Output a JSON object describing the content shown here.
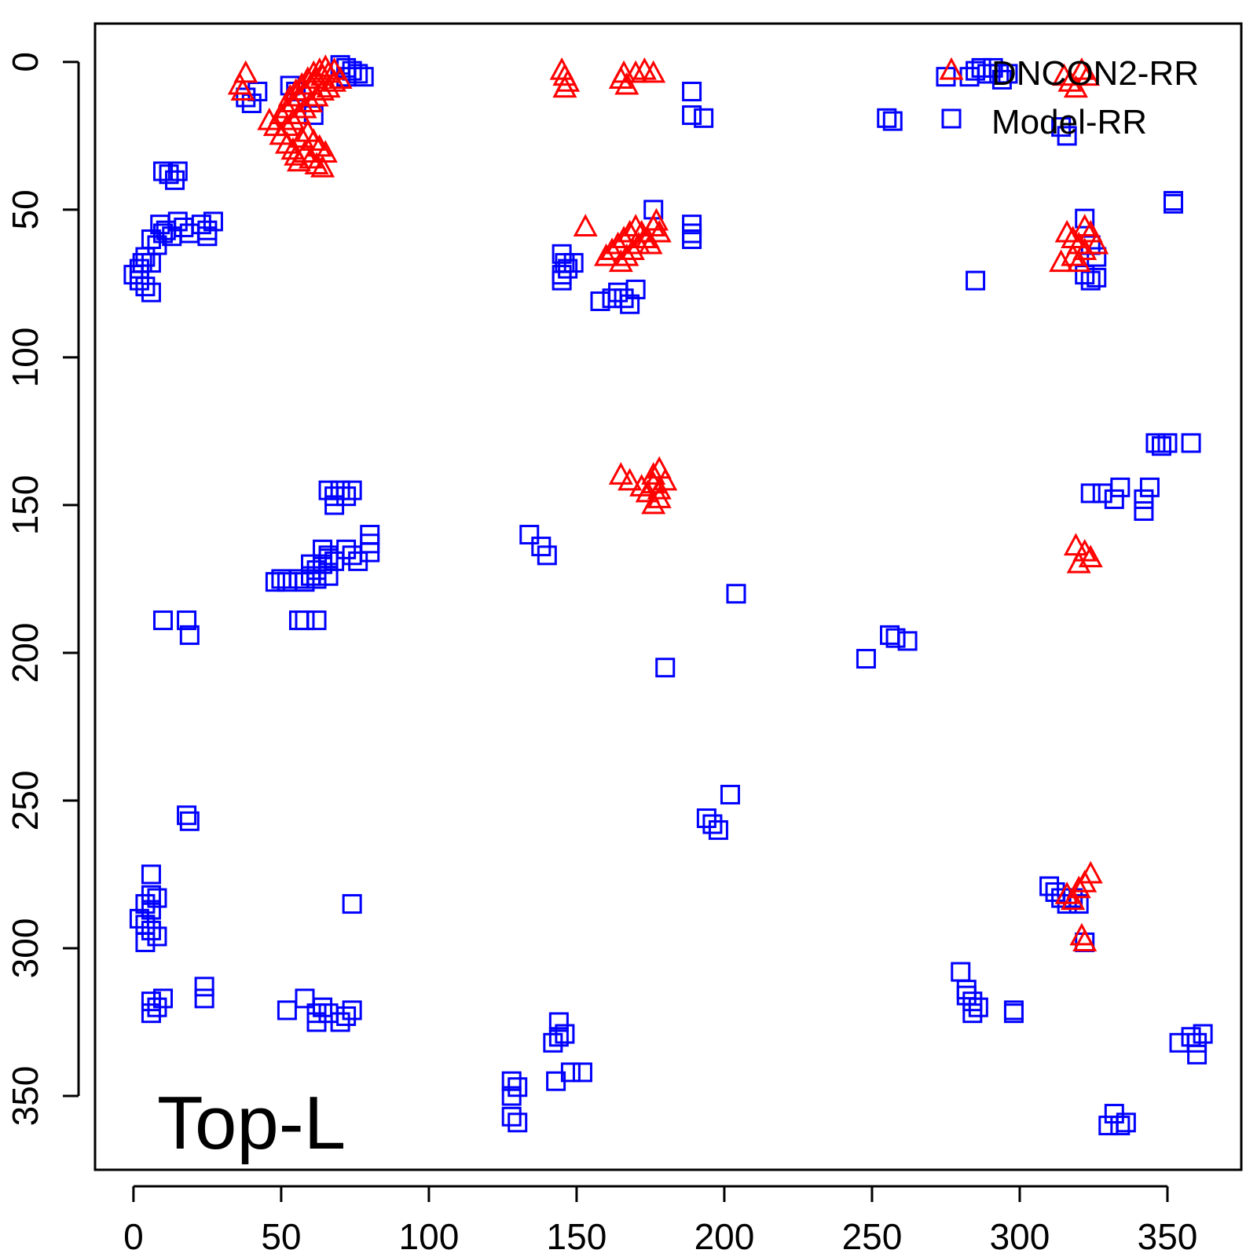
{
  "chart_data": {
    "type": "scatter",
    "title": "",
    "xlabel": "",
    "ylabel": "",
    "xlim": [
      -13,
      375
    ],
    "ylim": [
      -13,
      375
    ],
    "y_reversed": true,
    "x_ticks": [
      "0",
      "50",
      "100",
      "150",
      "200",
      "250",
      "300",
      "350"
    ],
    "y_ticks": [
      "0",
      "50",
      "100",
      "150",
      "200",
      "250",
      "300",
      "350"
    ],
    "grid": false,
    "legend_position": "top-right",
    "annotation": "Top-L",
    "series": [
      {
        "name": "DNCON2-RR",
        "color": "#ff0000",
        "marker": "triangle",
        "points": [
          [
            36,
            8
          ],
          [
            38,
            4
          ],
          [
            37,
            10
          ],
          [
            46,
            20
          ],
          [
            48,
            22
          ],
          [
            50,
            25
          ],
          [
            52,
            28
          ],
          [
            54,
            30
          ],
          [
            55,
            32
          ],
          [
            56,
            34
          ],
          [
            58,
            31
          ],
          [
            60,
            33
          ],
          [
            62,
            35
          ],
          [
            64,
            36
          ],
          [
            50,
            18
          ],
          [
            52,
            16
          ],
          [
            54,
            14
          ],
          [
            56,
            12
          ],
          [
            58,
            10
          ],
          [
            60,
            8
          ],
          [
            62,
            6
          ],
          [
            64,
            5
          ],
          [
            66,
            4
          ],
          [
            68,
            3
          ],
          [
            70,
            6
          ],
          [
            52,
            22
          ],
          [
            54,
            20
          ],
          [
            56,
            18
          ],
          [
            58,
            16
          ],
          [
            60,
            14
          ],
          [
            62,
            12
          ],
          [
            64,
            10
          ],
          [
            66,
            9
          ],
          [
            68,
            7
          ],
          [
            57,
            26
          ],
          [
            59,
            24
          ],
          [
            61,
            27
          ],
          [
            63,
            29
          ],
          [
            65,
            31
          ],
          [
            53,
            12
          ],
          [
            55,
            10
          ],
          [
            57,
            8
          ],
          [
            59,
            6
          ],
          [
            61,
            4
          ],
          [
            63,
            3
          ],
          [
            65,
            2
          ],
          [
            145,
            3
          ],
          [
            146,
            5
          ],
          [
            147,
            7
          ],
          [
            146,
            9
          ],
          [
            165,
            6
          ],
          [
            166,
            4
          ],
          [
            167,
            8
          ],
          [
            170,
            4
          ],
          [
            173,
            3
          ],
          [
            176,
            4
          ],
          [
            153,
            56
          ],
          [
            160,
            66
          ],
          [
            162,
            64
          ],
          [
            164,
            62
          ],
          [
            166,
            60
          ],
          [
            168,
            58
          ],
          [
            170,
            56
          ],
          [
            172,
            58
          ],
          [
            174,
            60
          ],
          [
            176,
            56
          ],
          [
            178,
            58
          ],
          [
            165,
            68
          ],
          [
            167,
            66
          ],
          [
            169,
            64
          ],
          [
            171,
            62
          ],
          [
            173,
            60
          ],
          [
            175,
            62
          ],
          [
            177,
            54
          ],
          [
            165,
            140
          ],
          [
            168,
            142
          ],
          [
            172,
            144
          ],
          [
            174,
            146
          ],
          [
            176,
            143
          ],
          [
            178,
            145
          ],
          [
            176,
            150
          ],
          [
            178,
            148
          ],
          [
            176,
            140
          ],
          [
            178,
            138
          ],
          [
            180,
            142
          ],
          [
            315,
            5
          ],
          [
            317,
            7
          ],
          [
            319,
            9
          ],
          [
            321,
            3
          ],
          [
            323,
            5
          ],
          [
            316,
            58
          ],
          [
            318,
            60
          ],
          [
            320,
            62
          ],
          [
            322,
            64
          ],
          [
            324,
            58
          ],
          [
            326,
            62
          ],
          [
            318,
            66
          ],
          [
            320,
            68
          ],
          [
            322,
            56
          ],
          [
            314,
            68
          ],
          [
            319,
            164
          ],
          [
            322,
            166
          ],
          [
            324,
            168
          ],
          [
            320,
            170
          ],
          [
            316,
            282
          ],
          [
            318,
            284
          ],
          [
            320,
            280
          ],
          [
            322,
            278
          ],
          [
            324,
            275
          ],
          [
            321,
            296
          ],
          [
            322,
            298
          ]
        ]
      },
      {
        "name": "Model-RR",
        "color": "#0000ff",
        "marker": "square",
        "points": [
          [
            38,
            12
          ],
          [
            40,
            14
          ],
          [
            42,
            10
          ],
          [
            53,
            8
          ],
          [
            55,
            10
          ],
          [
            61,
            18
          ],
          [
            70,
            1
          ],
          [
            72,
            2
          ],
          [
            74,
            3
          ],
          [
            76,
            4
          ],
          [
            78,
            5
          ],
          [
            72,
            5
          ],
          [
            10,
            37
          ],
          [
            12,
            38
          ],
          [
            14,
            40
          ],
          [
            15,
            37
          ],
          [
            9,
            55
          ],
          [
            11,
            57
          ],
          [
            13,
            59
          ],
          [
            15,
            54
          ],
          [
            17,
            56
          ],
          [
            19,
            58
          ],
          [
            23,
            55
          ],
          [
            25,
            57
          ],
          [
            27,
            54
          ],
          [
            25,
            59
          ],
          [
            6,
            60
          ],
          [
            8,
            62
          ],
          [
            10,
            58
          ],
          [
            4,
            66
          ],
          [
            6,
            68
          ],
          [
            2,
            70
          ],
          [
            0,
            72
          ],
          [
            2,
            74
          ],
          [
            4,
            76
          ],
          [
            6,
            78
          ],
          [
            3,
            68
          ],
          [
            145,
            65
          ],
          [
            146,
            68
          ],
          [
            147,
            70
          ],
          [
            149,
            68
          ],
          [
            145,
            72
          ],
          [
            145,
            74
          ],
          [
            158,
            81
          ],
          [
            162,
            80
          ],
          [
            164,
            78
          ],
          [
            166,
            80
          ],
          [
            170,
            77
          ],
          [
            168,
            82
          ],
          [
            176,
            50
          ],
          [
            189,
            10
          ],
          [
            189,
            18
          ],
          [
            193,
            19
          ],
          [
            189,
            55
          ],
          [
            189,
            58
          ],
          [
            189,
            60
          ],
          [
            283,
            5
          ],
          [
            285,
            3
          ],
          [
            287,
            2
          ],
          [
            289,
            4
          ],
          [
            291,
            2
          ],
          [
            293,
            4
          ],
          [
            294,
            6
          ],
          [
            296,
            4
          ],
          [
            275,
            5
          ],
          [
            255,
            19
          ],
          [
            257,
            20
          ],
          [
            314,
            22
          ],
          [
            316,
            25
          ],
          [
            285,
            74
          ],
          [
            322,
            53
          ],
          [
            324,
            62
          ],
          [
            326,
            66
          ],
          [
            322,
            72
          ],
          [
            324,
            74
          ],
          [
            326,
            73
          ],
          [
            352,
            47
          ],
          [
            352,
            48
          ],
          [
            66,
            145
          ],
          [
            68,
            147
          ],
          [
            70,
            145
          ],
          [
            72,
            147
          ],
          [
            74,
            145
          ],
          [
            68,
            150
          ],
          [
            64,
            165
          ],
          [
            66,
            167
          ],
          [
            68,
            169
          ],
          [
            72,
            165
          ],
          [
            74,
            167
          ],
          [
            76,
            169
          ],
          [
            80,
            160
          ],
          [
            80,
            163
          ],
          [
            80,
            166
          ],
          [
            48,
            176
          ],
          [
            50,
            175
          ],
          [
            52,
            176
          ],
          [
            56,
            175
          ],
          [
            58,
            176
          ],
          [
            60,
            174
          ],
          [
            62,
            172
          ],
          [
            64,
            170
          ],
          [
            66,
            168
          ],
          [
            60,
            170
          ],
          [
            62,
            175
          ],
          [
            66,
            174
          ],
          [
            56,
            189
          ],
          [
            58,
            189
          ],
          [
            62,
            189
          ],
          [
            10,
            189
          ],
          [
            18,
            189
          ],
          [
            19,
            194
          ],
          [
            134,
            160
          ],
          [
            138,
            164
          ],
          [
            140,
            167
          ],
          [
            204,
            180
          ],
          [
            180,
            205
          ],
          [
            248,
            202
          ],
          [
            256,
            194
          ],
          [
            258,
            195
          ],
          [
            262,
            196
          ],
          [
            346,
            129
          ],
          [
            348,
            130
          ],
          [
            350,
            129
          ],
          [
            358,
            129
          ],
          [
            344,
            144
          ],
          [
            334,
            144
          ],
          [
            328,
            146
          ],
          [
            332,
            148
          ],
          [
            324,
            146
          ],
          [
            342,
            148
          ],
          [
            342,
            152
          ],
          [
            18,
            255
          ],
          [
            19,
            257
          ],
          [
            6,
            275
          ],
          [
            4,
            285
          ],
          [
            6,
            287
          ],
          [
            8,
            283
          ],
          [
            2,
            290
          ],
          [
            4,
            292
          ],
          [
            6,
            294
          ],
          [
            8,
            296
          ],
          [
            4,
            298
          ],
          [
            6,
            282
          ],
          [
            74,
            285
          ],
          [
            194,
            256
          ],
          [
            196,
            258
          ],
          [
            198,
            260
          ],
          [
            202,
            248
          ],
          [
            310,
            279
          ],
          [
            312,
            281
          ],
          [
            314,
            283
          ],
          [
            316,
            285
          ],
          [
            318,
            283
          ],
          [
            320,
            285
          ],
          [
            322,
            298
          ],
          [
            280,
            308
          ],
          [
            282,
            316
          ],
          [
            284,
            318
          ],
          [
            286,
            320
          ],
          [
            284,
            322
          ],
          [
            282,
            314
          ],
          [
            298,
            321
          ],
          [
            298,
            322
          ],
          [
            6,
            318
          ],
          [
            8,
            320
          ],
          [
            10,
            317
          ],
          [
            6,
            322
          ],
          [
            24,
            313
          ],
          [
            24,
            317
          ],
          [
            52,
            321
          ],
          [
            58,
            317
          ],
          [
            62,
            322
          ],
          [
            64,
            320
          ],
          [
            66,
            322
          ],
          [
            70,
            325
          ],
          [
            72,
            323
          ],
          [
            74,
            321
          ],
          [
            62,
            325
          ],
          [
            144,
            325
          ],
          [
            144,
            330
          ],
          [
            146,
            329
          ],
          [
            142,
            332
          ],
          [
            143,
            345
          ],
          [
            148,
            342
          ],
          [
            152,
            342
          ],
          [
            128,
            345
          ],
          [
            130,
            347
          ],
          [
            128,
            350
          ],
          [
            128,
            357
          ],
          [
            130,
            359
          ],
          [
            330,
            360
          ],
          [
            332,
            356
          ],
          [
            334,
            360
          ],
          [
            336,
            359
          ],
          [
            354,
            332
          ],
          [
            358,
            330
          ],
          [
            360,
            332
          ],
          [
            360,
            336
          ],
          [
            362,
            329
          ]
        ]
      }
    ]
  }
}
